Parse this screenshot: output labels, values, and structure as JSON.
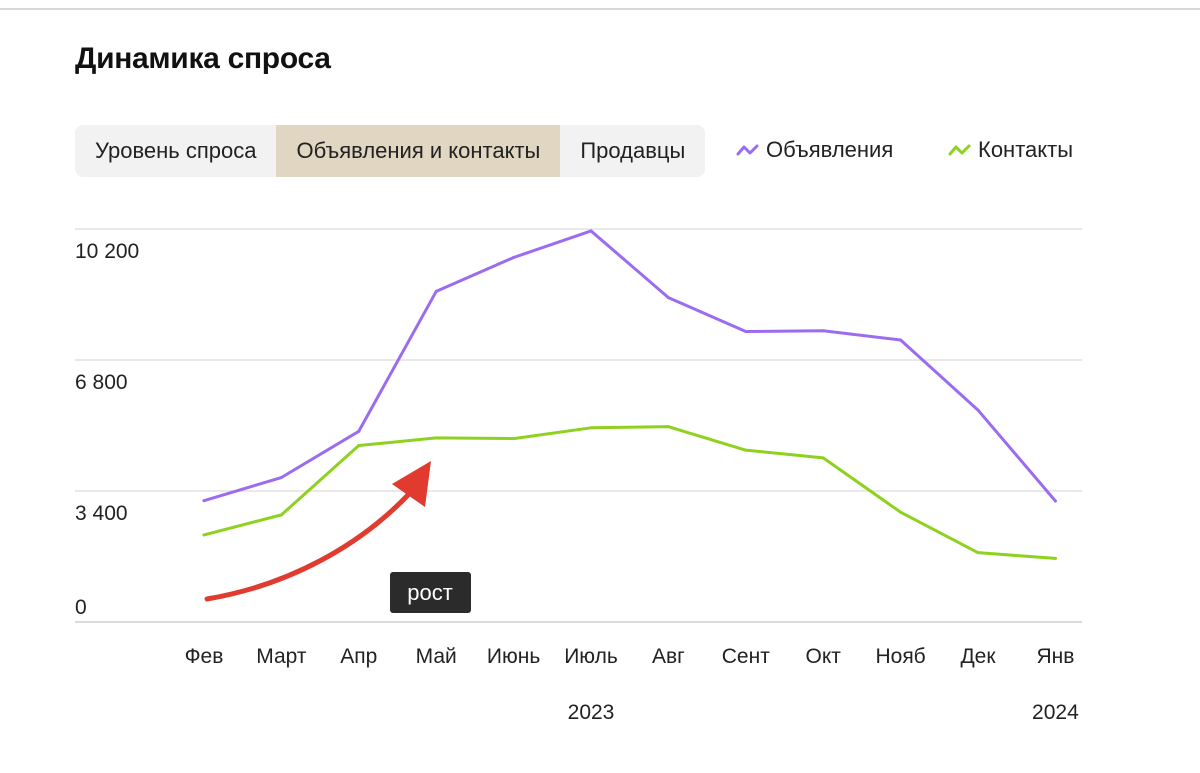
{
  "header": {
    "title": "Динамика спроса"
  },
  "tabs": [
    {
      "label": "Уровень спроса",
      "active": false
    },
    {
      "label": "Объявления и контакты",
      "active": true
    },
    {
      "label": "Продавцы",
      "active": false
    }
  ],
  "legend": [
    {
      "label": "Объявления",
      "color": "#9b6cf0"
    },
    {
      "label": "Контакты",
      "color": "#8ed21f"
    }
  ],
  "annotation": {
    "label": "рост",
    "arrow_color": "#e03b2e"
  },
  "chart_data": {
    "type": "line",
    "categories": [
      "Фев",
      "Март",
      "Апр",
      "Май",
      "Июнь",
      "Июль",
      "Авг",
      "Сент",
      "Окт",
      "Нояб",
      "Дек",
      "Янв"
    ],
    "year_labels": [
      {
        "label": "2023",
        "category": "Июль"
      },
      {
        "label": "2024",
        "category": "Янв"
      }
    ],
    "y_ticks": [
      {
        "value": 0,
        "label": "0"
      },
      {
        "value": 3400,
        "label": "3 400"
      },
      {
        "value": 6800,
        "label": "6 800"
      },
      {
        "value": 10200,
        "label": "10 200"
      }
    ],
    "ylim": [
      0,
      10200
    ],
    "grid": true,
    "legend_position": "top-right",
    "series": [
      {
        "name": "Объявления",
        "color": "#9b6cf0",
        "values": [
          3150,
          3750,
          4950,
          8580,
          9460,
          10150,
          8420,
          7540,
          7560,
          7320,
          5500,
          3140
        ]
      },
      {
        "name": "Контакты",
        "color": "#8ed21f",
        "values": [
          2260,
          2780,
          4580,
          4780,
          4760,
          5040,
          5070,
          4460,
          4260,
          2850,
          1800,
          1650
        ]
      }
    ]
  }
}
